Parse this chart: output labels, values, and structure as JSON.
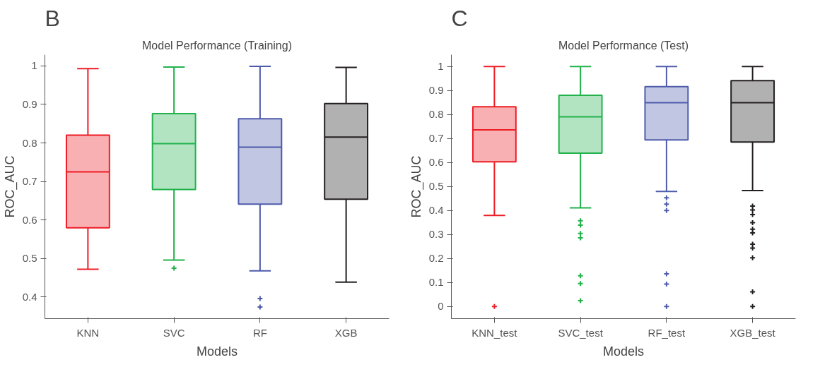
{
  "chart_data": [
    {
      "type": "box",
      "title": "Model Performance (Training)",
      "xlabel": "Models",
      "ylabel": "ROC_AUC",
      "annotations": [
        "B"
      ],
      "categories": [
        "KNN",
        "SVC",
        "RF",
        "XGB"
      ],
      "colors": [
        "#ee1c25",
        "#22b24c",
        "#4e5bab",
        "#231f20"
      ],
      "ylim": [
        0.344,
        1.029
      ],
      "yticks": [
        0.4,
        0.5,
        0.6,
        0.7,
        0.8,
        0.9,
        1
      ],
      "grid": false,
      "marker": "cross",
      "boxes": [
        {
          "low": 0.472,
          "q1": 0.58,
          "median": 0.725,
          "q3": 0.82,
          "high": 0.993
        },
        {
          "low": 0.496,
          "q1": 0.679,
          "median": 0.798,
          "q3": 0.876,
          "high": 0.997,
          "outliers": [
            0.475
          ]
        },
        {
          "low": 0.468,
          "q1": 0.641,
          "median": 0.789,
          "q3": 0.863,
          "high": 0.999,
          "outliers": [
            0.396,
            0.374
          ]
        },
        {
          "low": 0.439,
          "q1": 0.654,
          "median": 0.815,
          "q3": 0.902,
          "high": 0.996
        }
      ]
    },
    {
      "type": "box",
      "title": "Model Performance (Test)",
      "xlabel": "Models",
      "ylabel": "ROC_AUC",
      "annotations": [
        "C"
      ],
      "categories": [
        "KNN_test",
        "SVC_test",
        "RF_test",
        "XGB_test"
      ],
      "colors": [
        "#ee1c25",
        "#22b24c",
        "#4e5bab",
        "#231f20"
      ],
      "ylim": [
        -0.051,
        1.049
      ],
      "yticks": [
        0,
        0.1,
        0.2,
        0.3,
        0.4,
        0.5,
        0.6,
        0.7,
        0.8,
        0.9,
        1
      ],
      "grid": false,
      "marker": "cross",
      "boxes": [
        {
          "low": 0.379,
          "q1": 0.603,
          "median": 0.736,
          "q3": 0.832,
          "high": 1,
          "outliers": [
            0
          ]
        },
        {
          "low": 0.411,
          "q1": 0.639,
          "median": 0.79,
          "q3": 0.88,
          "high": 1,
          "outliers": [
            0.357,
            0.339,
            0.304,
            0.286,
            0.128,
            0.095,
            0.024
          ]
        },
        {
          "low": 0.479,
          "q1": 0.694,
          "median": 0.849,
          "q3": 0.916,
          "high": 1,
          "outliers": [
            0.453,
            0.426,
            0.4,
            0.136,
            0.093,
            0
          ]
        },
        {
          "low": 0.483,
          "q1": 0.685,
          "median": 0.849,
          "q3": 0.941,
          "high": 1,
          "outliers": [
            0.418,
            0.402,
            0.383,
            0.349,
            0.322,
            0.306,
            0.259,
            0.243,
            0.203,
            0.061,
            0
          ]
        }
      ]
    }
  ]
}
